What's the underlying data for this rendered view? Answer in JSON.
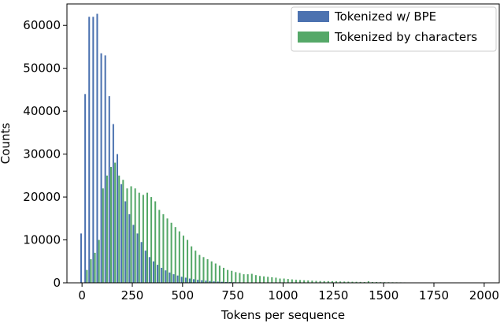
{
  "chart_data": {
    "type": "bar",
    "xlabel": "Tokens per sequence",
    "ylabel": "Counts",
    "xlim": [
      -75,
      2075
    ],
    "ylim": [
      0,
      65000
    ],
    "x_ticks": [
      0,
      250,
      500,
      750,
      1000,
      1250,
      1500,
      1750,
      2000
    ],
    "y_ticks": [
      0,
      10000,
      20000,
      30000,
      40000,
      50000,
      60000
    ],
    "grid": false,
    "legend_position": "top-right",
    "series": [
      {
        "name": "Tokenized w/ BPE",
        "color": "#4c72b0",
        "x": [
          0,
          20,
          40,
          60,
          80,
          100,
          120,
          140,
          160,
          180,
          200,
          220,
          240,
          260,
          280,
          300,
          320,
          340,
          360,
          380,
          400,
          420,
          440,
          460,
          480,
          500,
          520,
          540,
          560,
          580,
          600,
          620,
          640,
          660,
          680,
          700,
          720,
          740,
          760,
          780,
          800,
          820,
          840,
          860,
          880,
          900,
          920,
          940,
          960,
          980
        ],
        "values": [
          11500,
          44000,
          62000,
          62000,
          62700,
          53500,
          53000,
          43500,
          37000,
          30000,
          23000,
          19000,
          16000,
          13500,
          11500,
          9500,
          7500,
          6000,
          5000,
          4200,
          3500,
          2900,
          2400,
          2000,
          1700,
          1400,
          1200,
          1000,
          850,
          700,
          600,
          500,
          420,
          350,
          300,
          250,
          200,
          170,
          140,
          120,
          100,
          80,
          70,
          60,
          50,
          40,
          30,
          25,
          20,
          15
        ]
      },
      {
        "name": "Tokenized by characters",
        "color": "#55a868",
        "x": [
          20,
          40,
          60,
          80,
          100,
          120,
          140,
          160,
          180,
          200,
          220,
          240,
          260,
          280,
          300,
          320,
          340,
          360,
          380,
          400,
          420,
          440,
          460,
          480,
          500,
          520,
          540,
          560,
          580,
          600,
          620,
          640,
          660,
          680,
          700,
          720,
          740,
          760,
          780,
          800,
          820,
          840,
          860,
          880,
          900,
          920,
          940,
          960,
          980,
          1000,
          1020,
          1040,
          1060,
          1080,
          1100,
          1120,
          1140,
          1160,
          1180,
          1200,
          1220,
          1240,
          1260,
          1280,
          1300,
          1320,
          1340,
          1360,
          1380,
          1400,
          1420,
          1440,
          1460,
          1480,
          1500,
          1520,
          1540,
          1560,
          1580,
          1600
        ],
        "values": [
          3000,
          5500,
          7000,
          10000,
          22000,
          25000,
          27000,
          28000,
          25000,
          24000,
          22000,
          22500,
          22000,
          21000,
          20500,
          21000,
          20000,
          19000,
          17000,
          16000,
          15000,
          14000,
          13000,
          12000,
          11000,
          10000,
          8500,
          7500,
          6500,
          6000,
          5500,
          5000,
          4500,
          4000,
          3500,
          3000,
          2800,
          2500,
          2300,
          2000,
          2000,
          2100,
          1800,
          1600,
          1500,
          1400,
          1300,
          1200,
          1000,
          1000,
          900,
          800,
          700,
          650,
          600,
          550,
          500,
          450,
          420,
          400,
          400,
          380,
          350,
          320,
          300,
          280,
          260,
          240,
          220,
          200,
          380,
          200,
          180,
          160,
          150,
          140,
          130,
          120,
          110,
          100
        ]
      }
    ]
  }
}
